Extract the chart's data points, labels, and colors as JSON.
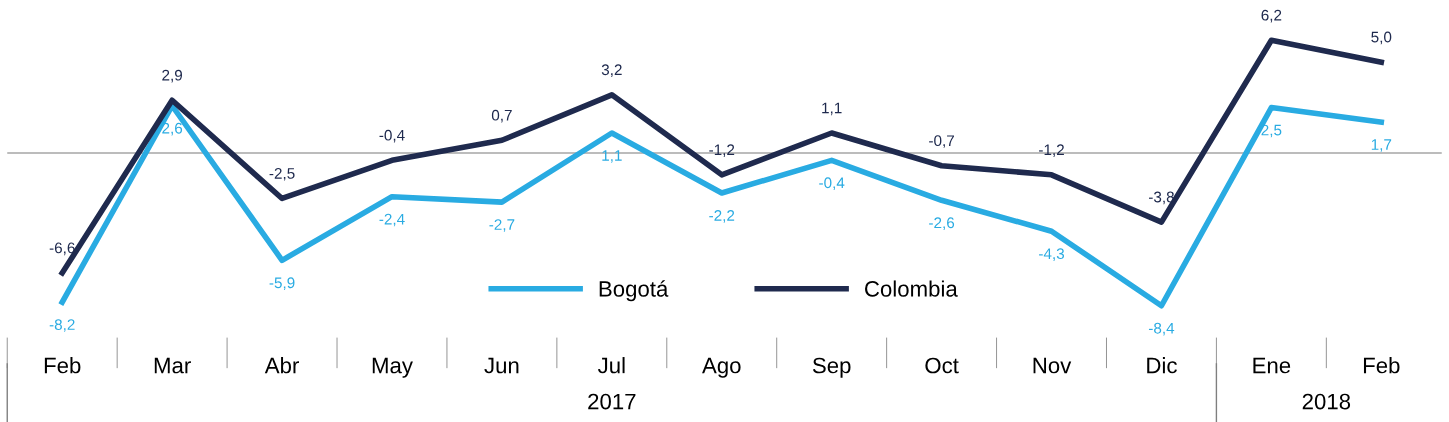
{
  "chart_data": {
    "type": "line",
    "categories": [
      "Feb",
      "Mar",
      "Abr",
      "May",
      "Jun",
      "Jul",
      "Ago",
      "Sep",
      "Oct",
      "Nov",
      "Dic",
      "Ene",
      "Feb"
    ],
    "series": [
      {
        "name": "Bogotá",
        "color": "#29abe2",
        "values": [
          -8.2,
          2.6,
          -5.9,
          -2.4,
          -2.7,
          1.1,
          -2.2,
          -0.4,
          -2.6,
          -4.3,
          -8.4,
          2.5,
          1.7
        ],
        "value_labels": [
          "-8,2",
          "2,6",
          "-5,9",
          "-2,4",
          "-2,7",
          "1,1",
          "-2,2",
          "-0,4",
          "-2,6",
          "-4,3",
          "-8,4",
          "2,5",
          "1,7"
        ]
      },
      {
        "name": "Colombia",
        "color": "#1f2a4e",
        "values": [
          -6.6,
          2.9,
          -2.5,
          -0.4,
          0.7,
          3.2,
          -1.2,
          1.1,
          -0.7,
          -1.2,
          -3.8,
          6.2,
          5.0
        ],
        "value_labels": [
          "-6,6",
          "2,9",
          "-2,5",
          "-0,4",
          "0,7",
          "3,2",
          "-1,2",
          "1,1",
          "-0,7",
          "-1,2",
          "-3,8",
          "6,2",
          "5,0"
        ]
      }
    ],
    "annotations": [
      "2017",
      "2018"
    ],
    "ref_lines": [
      {
        "axis": "y",
        "value": 0,
        "color": "#a6a6a6"
      }
    ],
    "legend": "bottom",
    "grid": false,
    "marker": "none",
    "line_style": "solid"
  }
}
